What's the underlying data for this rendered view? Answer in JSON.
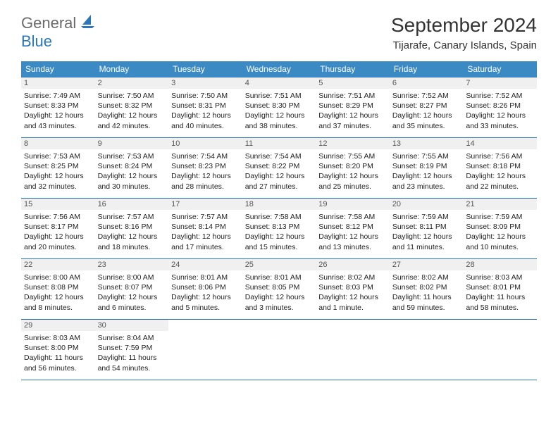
{
  "logo": {
    "text1": "General",
    "text2": "Blue"
  },
  "title": {
    "month": "September 2024",
    "location": "Tijarafe, Canary Islands, Spain"
  },
  "colors": {
    "header_bg": "#3b8ac4",
    "header_text": "#ffffff",
    "row_border": "#2b77bb",
    "daynum_bg": "#f0f0f0",
    "logo_gray": "#6b6b6b",
    "logo_blue": "#2b77bb"
  },
  "weekdays": [
    "Sunday",
    "Monday",
    "Tuesday",
    "Wednesday",
    "Thursday",
    "Friday",
    "Saturday"
  ],
  "days": {
    "1": {
      "sunrise": "7:49 AM",
      "sunset": "8:33 PM",
      "daylight": "12 hours and 43 minutes."
    },
    "2": {
      "sunrise": "7:50 AM",
      "sunset": "8:32 PM",
      "daylight": "12 hours and 42 minutes."
    },
    "3": {
      "sunrise": "7:50 AM",
      "sunset": "8:31 PM",
      "daylight": "12 hours and 40 minutes."
    },
    "4": {
      "sunrise": "7:51 AM",
      "sunset": "8:30 PM",
      "daylight": "12 hours and 38 minutes."
    },
    "5": {
      "sunrise": "7:51 AM",
      "sunset": "8:29 PM",
      "daylight": "12 hours and 37 minutes."
    },
    "6": {
      "sunrise": "7:52 AM",
      "sunset": "8:27 PM",
      "daylight": "12 hours and 35 minutes."
    },
    "7": {
      "sunrise": "7:52 AM",
      "sunset": "8:26 PM",
      "daylight": "12 hours and 33 minutes."
    },
    "8": {
      "sunrise": "7:53 AM",
      "sunset": "8:25 PM",
      "daylight": "12 hours and 32 minutes."
    },
    "9": {
      "sunrise": "7:53 AM",
      "sunset": "8:24 PM",
      "daylight": "12 hours and 30 minutes."
    },
    "10": {
      "sunrise": "7:54 AM",
      "sunset": "8:23 PM",
      "daylight": "12 hours and 28 minutes."
    },
    "11": {
      "sunrise": "7:54 AM",
      "sunset": "8:22 PM",
      "daylight": "12 hours and 27 minutes."
    },
    "12": {
      "sunrise": "7:55 AM",
      "sunset": "8:20 PM",
      "daylight": "12 hours and 25 minutes."
    },
    "13": {
      "sunrise": "7:55 AM",
      "sunset": "8:19 PM",
      "daylight": "12 hours and 23 minutes."
    },
    "14": {
      "sunrise": "7:56 AM",
      "sunset": "8:18 PM",
      "daylight": "12 hours and 22 minutes."
    },
    "15": {
      "sunrise": "7:56 AM",
      "sunset": "8:17 PM",
      "daylight": "12 hours and 20 minutes."
    },
    "16": {
      "sunrise": "7:57 AM",
      "sunset": "8:16 PM",
      "daylight": "12 hours and 18 minutes."
    },
    "17": {
      "sunrise": "7:57 AM",
      "sunset": "8:14 PM",
      "daylight": "12 hours and 17 minutes."
    },
    "18": {
      "sunrise": "7:58 AM",
      "sunset": "8:13 PM",
      "daylight": "12 hours and 15 minutes."
    },
    "19": {
      "sunrise": "7:58 AM",
      "sunset": "8:12 PM",
      "daylight": "12 hours and 13 minutes."
    },
    "20": {
      "sunrise": "7:59 AM",
      "sunset": "8:11 PM",
      "daylight": "12 hours and 11 minutes."
    },
    "21": {
      "sunrise": "7:59 AM",
      "sunset": "8:09 PM",
      "daylight": "12 hours and 10 minutes."
    },
    "22": {
      "sunrise": "8:00 AM",
      "sunset": "8:08 PM",
      "daylight": "12 hours and 8 minutes."
    },
    "23": {
      "sunrise": "8:00 AM",
      "sunset": "8:07 PM",
      "daylight": "12 hours and 6 minutes."
    },
    "24": {
      "sunrise": "8:01 AM",
      "sunset": "8:06 PM",
      "daylight": "12 hours and 5 minutes."
    },
    "25": {
      "sunrise": "8:01 AM",
      "sunset": "8:05 PM",
      "daylight": "12 hours and 3 minutes."
    },
    "26": {
      "sunrise": "8:02 AM",
      "sunset": "8:03 PM",
      "daylight": "12 hours and 1 minute."
    },
    "27": {
      "sunrise": "8:02 AM",
      "sunset": "8:02 PM",
      "daylight": "11 hours and 59 minutes."
    },
    "28": {
      "sunrise": "8:03 AM",
      "sunset": "8:01 PM",
      "daylight": "11 hours and 58 minutes."
    },
    "29": {
      "sunrise": "8:03 AM",
      "sunset": "8:00 PM",
      "daylight": "11 hours and 56 minutes."
    },
    "30": {
      "sunrise": "8:04 AM",
      "sunset": "7:59 PM",
      "daylight": "11 hours and 54 minutes."
    }
  },
  "labels": {
    "sunrise": "Sunrise:",
    "sunset": "Sunset:",
    "daylight": "Daylight:"
  },
  "layout": {
    "start_weekday": 0,
    "num_days": 30,
    "rows": 5,
    "cols": 7
  }
}
